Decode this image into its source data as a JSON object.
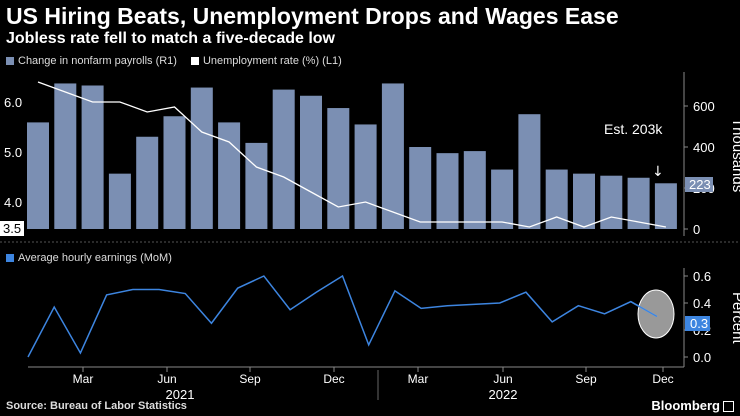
{
  "title": "US Hiring Beats, Unemployment Drops and Wages Ease",
  "subtitle": "Jobless rate fell to match a five-decade low",
  "legend": {
    "payrolls": "Change in nonfarm payrolls (R1)",
    "unemployment": "Unemployment rate (%) (L1)",
    "earnings": "Average hourly earnings (MoM)"
  },
  "colors": {
    "bar": "#7b8fb3",
    "line_white": "#ffffff",
    "line_blue": "#3d85e0",
    "bg": "#000000"
  },
  "chart_data": [
    {
      "type": "bar+line",
      "name": "top-panel",
      "categories": [
        "2021-01",
        "2021-02",
        "2021-03",
        "2021-04",
        "2021-05",
        "2021-06",
        "2021-07",
        "2021-08",
        "2021-09",
        "2021-10",
        "2021-11",
        "2021-12",
        "2022-01",
        "2022-02",
        "2022-03",
        "2022-04",
        "2022-05",
        "2022-06",
        "2022-07",
        "2022-08",
        "2022-09",
        "2022-10",
        "2022-11",
        "2022-12"
      ],
      "series": [
        {
          "name": "Change in nonfarm payrolls (R1)",
          "axis": "right",
          "type": "bar",
          "values": [
            520,
            710,
            700,
            270,
            450,
            550,
            690,
            520,
            420,
            680,
            650,
            590,
            510,
            710,
            400,
            370,
            380,
            290,
            560,
            290,
            270,
            260,
            250,
            223
          ]
        },
        {
          "name": "Unemployment rate (%) (L1)",
          "axis": "left",
          "type": "line",
          "values": [
            6.4,
            6.2,
            6.0,
            6.0,
            5.8,
            5.9,
            5.4,
            5.2,
            4.7,
            4.5,
            4.2,
            3.9,
            4.0,
            3.8,
            3.6,
            3.6,
            3.6,
            3.6,
            3.5,
            3.7,
            3.5,
            3.7,
            3.6,
            3.5
          ]
        }
      ],
      "y_left": {
        "ticks": [
          "6.0",
          "5.0",
          "4.0"
        ],
        "last_label": "3.5",
        "ylim": [
          3.5,
          6.5
        ]
      },
      "y_right": {
        "ticks": [
          "600",
          "400",
          "200",
          "0"
        ],
        "label": "Thousands",
        "last_label": "223",
        "ylim": [
          0,
          780
        ]
      },
      "annotation": {
        "text": "Est. 203k",
        "arrow": "↓"
      }
    },
    {
      "type": "line",
      "name": "bottom-panel",
      "series": [
        {
          "name": "Average hourly earnings (MoM)",
          "values": [
            0.0,
            0.37,
            0.03,
            0.46,
            0.5,
            0.5,
            0.47,
            0.25,
            0.51,
            0.6,
            0.35,
            0.48,
            0.6,
            0.09,
            0.49,
            0.36,
            0.38,
            0.39,
            0.4,
            0.48,
            0.26,
            0.38,
            0.32,
            0.41,
            0.3
          ]
        }
      ],
      "y_right": {
        "ticks": [
          "0.6",
          "0.4",
          "0.2",
          "0.0"
        ],
        "label": "Percent",
        "last_label": "0.3",
        "ylim": [
          0,
          0.6
        ]
      }
    }
  ],
  "x_axis": {
    "months": [
      "Mar",
      "Jun",
      "Sep",
      "Dec",
      "Mar",
      "Jun",
      "Sep",
      "Dec"
    ],
    "years": [
      "2021",
      "2022"
    ]
  },
  "source": "Source: Bureau of Labor Statistics",
  "brand": "Bloomberg"
}
